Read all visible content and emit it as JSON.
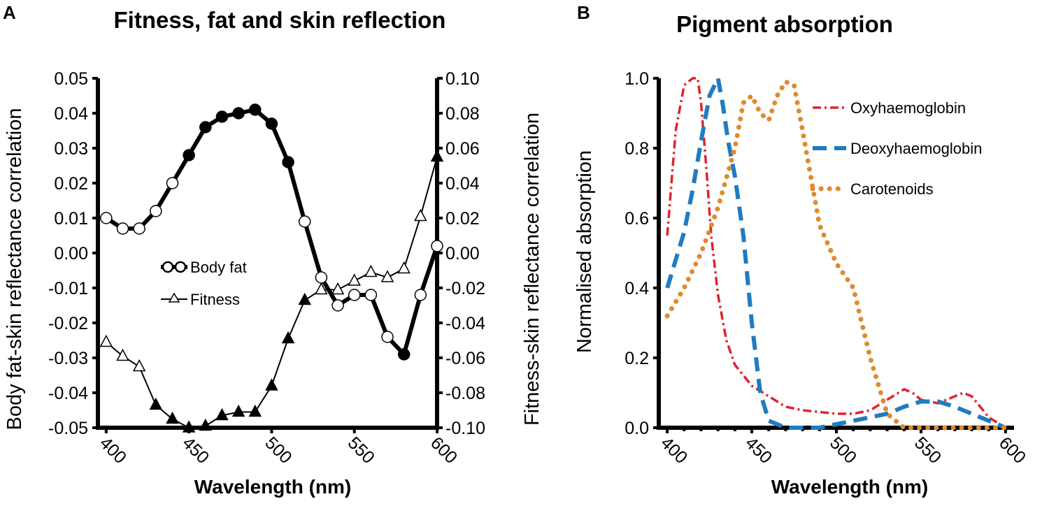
{
  "chart_data": [
    {
      "panel": "A",
      "type": "line",
      "title": "Fitness, fat and skin reflection",
      "xlabel": "Wavelength (nm)",
      "ylabel_left": "Body fat-skin reflectance correlation",
      "ylabel_right": "Fitness-skin reflectance correlation",
      "xlim": [
        395,
        600
      ],
      "ylim_left": [
        -0.05,
        0.05
      ],
      "ylim_right": [
        -0.1,
        0.1
      ],
      "xticks": [
        "400",
        "450",
        "500",
        "550",
        "600"
      ],
      "yticks_left": [
        "0.05",
        "0.04",
        "0.03",
        "0.02",
        "0.01",
        "0.00",
        "-0.01",
        "-0.02",
        "-0.03",
        "-0.04",
        "-0.05"
      ],
      "yticks_right": [
        "0.10",
        "0.08",
        "0.06",
        "0.04",
        "0.02",
        "0.00",
        "-0.02",
        "-0.04",
        "-0.06",
        "-0.08",
        "-0.10"
      ],
      "legend": [
        {
          "label": "Body fat",
          "marker": "circle"
        },
        {
          "label": "Fitness",
          "marker": "triangle"
        }
      ],
      "series": [
        {
          "name": "Body fat",
          "axis": "left",
          "x": [
            400,
            410,
            420,
            430,
            440,
            450,
            460,
            470,
            480,
            490,
            500,
            510,
            520,
            530,
            540,
            550,
            560,
            570,
            580,
            590,
            600
          ],
          "values": [
            0.01,
            0.007,
            0.007,
            0.012,
            0.02,
            0.028,
            0.036,
            0.039,
            0.04,
            0.041,
            0.037,
            0.026,
            0.009,
            -0.007,
            -0.015,
            -0.012,
            -0.012,
            -0.024,
            -0.029,
            -0.012,
            0.002
          ],
          "filled": [
            false,
            false,
            false,
            false,
            false,
            true,
            true,
            true,
            true,
            true,
            true,
            true,
            false,
            false,
            false,
            false,
            false,
            false,
            true,
            false,
            false
          ]
        },
        {
          "name": "Fitness",
          "axis": "right",
          "x": [
            400,
            410,
            420,
            430,
            440,
            450,
            460,
            470,
            480,
            490,
            500,
            510,
            520,
            530,
            540,
            550,
            560,
            570,
            580,
            590,
            600
          ],
          "values": [
            -0.051,
            -0.059,
            -0.065,
            -0.087,
            -0.095,
            -0.1,
            -0.099,
            -0.093,
            -0.091,
            -0.091,
            -0.076,
            -0.049,
            -0.027,
            -0.021,
            -0.021,
            -0.016,
            -0.011,
            -0.014,
            -0.009,
            0.021,
            0.055
          ],
          "filled": [
            false,
            false,
            false,
            true,
            true,
            true,
            true,
            true,
            true,
            true,
            true,
            true,
            true,
            false,
            false,
            false,
            false,
            false,
            false,
            false,
            true
          ]
        }
      ]
    },
    {
      "panel": "B",
      "type": "line",
      "title": "Pigment absorption",
      "xlabel": "Wavelength (nm)",
      "ylabel": "Normalised absorption",
      "xlim": [
        395,
        605
      ],
      "ylim": [
        0,
        1.0
      ],
      "xticks": [
        "400",
        "450",
        "500",
        "550",
        "600"
      ],
      "yticks": [
        "1.0",
        "0.8",
        "0.6",
        "0.4",
        "0.2",
        "0.0"
      ],
      "legend": [
        {
          "label": "Oxyhaemoglobin",
          "color": "#e0242b",
          "style": "dash-dot"
        },
        {
          "label": "Deoxyhaemoglobin",
          "color": "#1f7cc1",
          "style": "dash"
        },
        {
          "label": "Carotenoids",
          "color": "#e08a2e",
          "style": "dot"
        }
      ],
      "series": [
        {
          "name": "Oxyhaemoglobin",
          "x": [
            400,
            405,
            410,
            415,
            418,
            420,
            423,
            426,
            430,
            435,
            440,
            445,
            450,
            460,
            470,
            480,
            490,
            500,
            510,
            520,
            530,
            540,
            545,
            550,
            560,
            570,
            575,
            580,
            590,
            600
          ],
          "values": [
            0.55,
            0.85,
            0.98,
            1.0,
            1.0,
            0.93,
            0.75,
            0.55,
            0.38,
            0.25,
            0.18,
            0.15,
            0.12,
            0.09,
            0.06,
            0.05,
            0.045,
            0.04,
            0.04,
            0.05,
            0.08,
            0.11,
            0.1,
            0.08,
            0.07,
            0.09,
            0.1,
            0.09,
            0.03,
            0.0
          ]
        },
        {
          "name": "Deoxyhaemoglobin",
          "x": [
            400,
            410,
            415,
            420,
            425,
            430,
            433,
            436,
            440,
            445,
            450,
            455,
            460,
            470,
            480,
            490,
            500,
            510,
            520,
            530,
            540,
            550,
            560,
            570,
            580,
            590,
            600
          ],
          "values": [
            0.4,
            0.56,
            0.68,
            0.82,
            0.95,
            1.0,
            0.92,
            0.82,
            0.72,
            0.55,
            0.3,
            0.1,
            0.02,
            0.0,
            0.0,
            0.0,
            0.01,
            0.02,
            0.03,
            0.04,
            0.06,
            0.075,
            0.075,
            0.06,
            0.04,
            0.02,
            0.0
          ]
        },
        {
          "name": "Carotenoids",
          "x": [
            400,
            410,
            420,
            430,
            440,
            445,
            450,
            455,
            460,
            465,
            470,
            475,
            480,
            490,
            500,
            510,
            520,
            530,
            540,
            550,
            560,
            570,
            580,
            590,
            600
          ],
          "values": [
            0.32,
            0.4,
            0.5,
            0.63,
            0.8,
            0.93,
            0.95,
            0.9,
            0.88,
            0.95,
            0.99,
            0.98,
            0.85,
            0.58,
            0.47,
            0.4,
            0.2,
            0.04,
            0.0,
            0.0,
            0.0,
            0.0,
            0.0,
            0.0,
            0.0
          ]
        }
      ]
    }
  ]
}
